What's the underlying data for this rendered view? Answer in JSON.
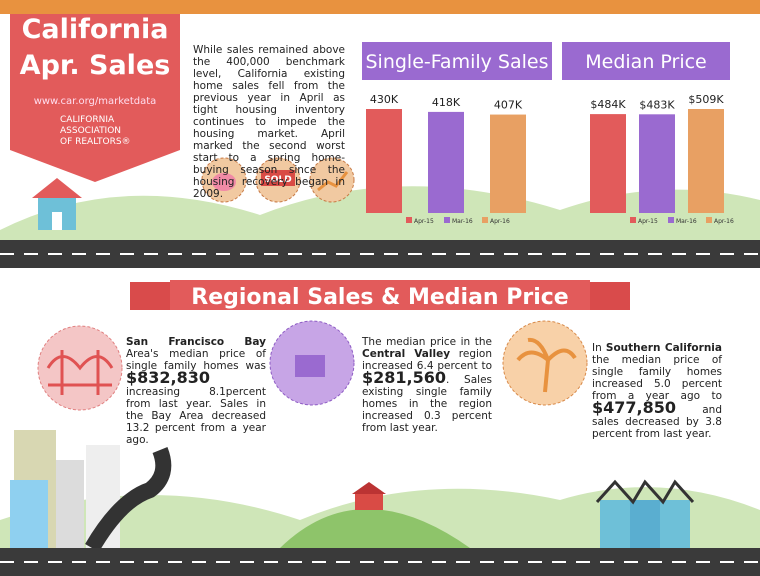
{
  "header": {
    "title_lines": [
      "California",
      "Apr. Sales"
    ],
    "url": "www.car.org/marketdata",
    "logo_lines": [
      "CALIFORNIA",
      "ASSOCIATION",
      "OF REALTORS®"
    ],
    "intro": "While sales remained above the 400,000 benchmark level, California existing home sales fell from the previous year in April as tight housing inventory continues to impede the housing market. April marked the second worst start to a spring home-buying season since the housing recovery began in 2009.",
    "sold_sign": "SOLD"
  },
  "chart_data": [
    {
      "type": "bar",
      "title": "Single-Family Sales",
      "categories": [
        "Apr-15",
        "Mar-16",
        "Apr-16"
      ],
      "values": [
        430,
        418,
        407
      ],
      "value_labels": [
        "430K",
        "418K",
        "407K"
      ],
      "colors": [
        "#e25b5b",
        "#9a6ad0",
        "#e8a063"
      ]
    },
    {
      "type": "bar",
      "title": "Median Price",
      "categories": [
        "Apr-15",
        "Mar-16",
        "Apr-16"
      ],
      "values": [
        484,
        483,
        509
      ],
      "value_labels": [
        "$484K",
        "$483K",
        "$509K"
      ],
      "colors": [
        "#e25b5b",
        "#9a6ad0",
        "#e8a063"
      ]
    }
  ],
  "section_title": "Regional Sales & Median Price",
  "regions": [
    {
      "parts": [
        "San Francisco Bay",
        "Area's median price of single family homes was",
        "$832,830",
        "increasing 8.1percent from last year. Sales in the Bay Area decreased 13.2 percent from a year ago."
      ]
    },
    {
      "parts": [
        "The median price in the",
        "Central Valley",
        "region increased 6.4 percent to",
        "$281,560",
        ". Sales existing single family homes in the region increased 0.3 percent from last year."
      ]
    },
    {
      "parts": [
        "In",
        "Southern California",
        "the median price of single family homes increased 5.0 percent from a year ago to",
        "$477,850",
        "and sales decreased by 3.8 percent from last year."
      ]
    }
  ]
}
